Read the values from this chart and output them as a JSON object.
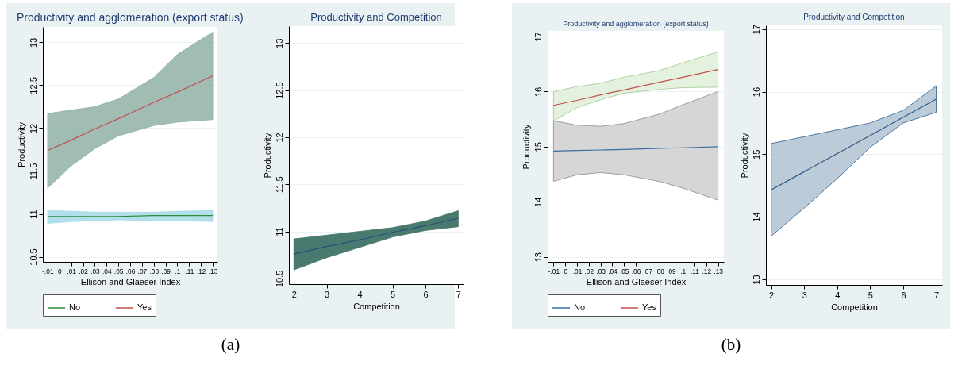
{
  "chart_data": [
    {
      "type": "line",
      "title": "Productivity and agglomeration (export status)",
      "xlabel": "Ellison and Glaeser Index",
      "ylabel": "Productivity",
      "annotations": [
        "(a)"
      ],
      "legend": "bottom",
      "grid": "y",
      "xlim": [
        -0.014,
        0.134
      ],
      "xticks": [
        {
          "value": -0.01,
          "label": "-.01"
        },
        0,
        {
          "value": 0.01,
          "label": ".01"
        },
        {
          "value": 0.02,
          "label": ".02"
        },
        {
          "value": 0.03,
          "label": ".03"
        },
        {
          "value": 0.04,
          "label": ".04"
        },
        {
          "value": 0.05,
          "label": ".05"
        },
        {
          "value": 0.06,
          "label": ".06"
        },
        {
          "value": 0.07,
          "label": ".07"
        },
        {
          "value": 0.08,
          "label": ".08"
        },
        {
          "value": 0.09,
          "label": ".09"
        },
        {
          "value": 0.1,
          "label": ".1"
        },
        {
          "value": 0.11,
          "label": ".11"
        },
        {
          "value": 0.12,
          "label": ".12"
        },
        {
          "value": 0.13,
          "label": ".13"
        }
      ],
      "ylim": [
        10.44,
        13.18
      ],
      "yticks": [
        10.5,
        11,
        11.5,
        12,
        12.5,
        13
      ],
      "x": [
        -0.01,
        0.01,
        0.03,
        0.05,
        0.08,
        0.1,
        0.13
      ],
      "series": [
        {
          "name": "No",
          "color": "#2e8b3a",
          "values": [
            10.97,
            10.97,
            10.97,
            10.97,
            10.98,
            10.98,
            10.98
          ],
          "lower": [
            10.89,
            10.91,
            10.92,
            10.93,
            10.92,
            10.92,
            10.91
          ],
          "upper": [
            11.04,
            11.03,
            11.02,
            11.02,
            11.02,
            11.03,
            11.04
          ]
        },
        {
          "name": "Yes",
          "color": "#c0504d",
          "values": [
            11.74,
            11.86,
            11.99,
            12.11,
            12.3,
            12.42,
            12.61
          ],
          "lower": [
            11.3,
            11.56,
            11.76,
            11.91,
            12.03,
            12.07,
            12.1
          ],
          "upper": [
            12.17,
            12.21,
            12.25,
            12.34,
            12.59,
            12.86,
            13.12
          ]
        }
      ]
    },
    {
      "type": "line",
      "title": "Productivity and Competition",
      "xlabel": "Competition",
      "ylabel": "Productivity",
      "grid": "y",
      "xlim": [
        1.85,
        7.16
      ],
      "xticks": [
        2,
        3,
        4,
        5,
        6,
        7
      ],
      "ylim": [
        10.44,
        13.18
      ],
      "yticks": [
        10.5,
        11,
        11.5,
        12,
        12.5,
        13
      ],
      "x": [
        2,
        3,
        4,
        5,
        6,
        7
      ],
      "series": [
        {
          "color": "#2a4f7a",
          "values": [
            10.76,
            10.84,
            10.91,
            10.99,
            11.06,
            11.14
          ],
          "lower": [
            10.59,
            10.72,
            10.83,
            10.94,
            11.01,
            11.05
          ],
          "upper": [
            10.92,
            10.96,
            11.0,
            11.04,
            11.11,
            11.22
          ]
        }
      ]
    },
    {
      "type": "line",
      "title": "Productivity and agglomeration (export status)",
      "xlabel": "Ellison and Glaeser Index",
      "ylabel": "Productivity",
      "annotations": [
        "(b)"
      ],
      "legend": "bottom",
      "grid": "y",
      "xlim": [
        -0.015,
        0.135
      ],
      "xticks": [
        {
          "value": -0.01,
          "label": "-.01"
        },
        0,
        {
          "value": 0.01,
          "label": ".01"
        },
        {
          "value": 0.02,
          "label": ".02"
        },
        {
          "value": 0.03,
          "label": ".03"
        },
        {
          "value": 0.04,
          "label": ".04"
        },
        {
          "value": 0.05,
          "label": ".05"
        },
        {
          "value": 0.06,
          "label": ".06"
        },
        {
          "value": 0.07,
          "label": ".07"
        },
        {
          "value": 0.08,
          "label": ".08"
        },
        {
          "value": 0.09,
          "label": ".09"
        },
        {
          "value": 0.1,
          "label": ".1"
        },
        {
          "value": 0.11,
          "label": ".11"
        },
        {
          "value": 0.12,
          "label": ".12"
        },
        {
          "value": 0.13,
          "label": ".13"
        }
      ],
      "ylim": [
        12.91,
        17.1
      ],
      "yticks": [
        13,
        14,
        15,
        16,
        17
      ],
      "x": [
        -0.01,
        0.01,
        0.03,
        0.05,
        0.08,
        0.1,
        0.13
      ],
      "series": [
        {
          "name": "No",
          "color": "#3a6ea5",
          "values": [
            14.92,
            14.93,
            14.94,
            14.95,
            14.97,
            14.98,
            15.0
          ],
          "lower": [
            14.37,
            14.49,
            14.53,
            14.49,
            14.37,
            14.25,
            14.03
          ],
          "upper": [
            15.47,
            15.39,
            15.37,
            15.42,
            15.59,
            15.76,
            16.0
          ]
        },
        {
          "name": "Yes",
          "color": "#c0504d",
          "values": [
            15.75,
            15.84,
            15.94,
            16.03,
            16.17,
            16.26,
            16.4
          ],
          "lower": [
            15.47,
            15.71,
            15.85,
            15.97,
            16.04,
            16.07,
            16.08
          ],
          "upper": [
            16.0,
            16.09,
            16.15,
            16.26,
            16.38,
            16.52,
            16.72
          ]
        }
      ]
    },
    {
      "type": "line",
      "title": "Productivity and Competition",
      "xlabel": "Competition",
      "ylabel": "Productivity",
      "grid": "y",
      "xlim": [
        1.84,
        7.18
      ],
      "xticks": [
        2,
        3,
        4,
        5,
        6,
        7
      ],
      "ylim": [
        12.91,
        17.06
      ],
      "yticks": [
        13,
        14,
        15,
        16,
        17
      ],
      "x": [
        2,
        3,
        4,
        5,
        6,
        7
      ],
      "series": [
        {
          "color": "#2d5a8a",
          "values": [
            14.43,
            14.72,
            15.01,
            15.3,
            15.59,
            15.88
          ],
          "lower": [
            13.69,
            14.14,
            14.61,
            15.11,
            15.5,
            15.67
          ],
          "upper": [
            15.17,
            15.28,
            15.39,
            15.5,
            15.7,
            16.09
          ]
        }
      ]
    }
  ]
}
